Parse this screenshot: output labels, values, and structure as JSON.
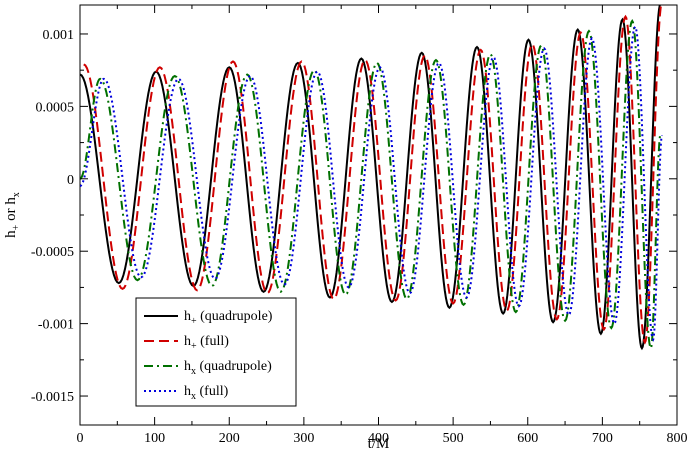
{
  "chart_data": {
    "type": "line",
    "title": "",
    "xlabel": "t/M",
    "ylabel": {
      "base": "h",
      "sub_plus": "+",
      "mid": " or h",
      "sub_x": "x"
    },
    "xlim": [
      0,
      800
    ],
    "ylim": [
      -0.0017,
      0.0012
    ],
    "xticks": [
      0,
      100,
      200,
      300,
      400,
      500,
      600,
      700,
      800
    ],
    "xtick_labels": [
      "0",
      "100",
      "200",
      "300",
      "400",
      "500",
      "600",
      "700",
      "800"
    ],
    "yticks": [
      -0.0015,
      -0.001,
      -0.0005,
      0,
      0.0005,
      0.001
    ],
    "ytick_labels": [
      "-0.0015",
      "-0.001",
      "-0.0005",
      "0",
      "0.0005",
      "0.001"
    ],
    "grid": false,
    "legend_position": "bottom-left",
    "series": [
      {
        "name": "h+ (quadrupole)",
        "legend": {
          "base": "h",
          "sub": "+",
          "rest": " (quadrupole)"
        },
        "color": "#000000",
        "dash": "solid",
        "x": [
          0,
          52,
          102,
          152,
          200,
          246,
          292,
          335,
          377,
          418,
          458,
          495,
          532,
          567,
          601,
          634,
          667,
          698,
          727,
          753,
          778
        ],
        "y": [
          0.00072,
          -0.00072,
          0.00074,
          -0.00074,
          0.00077,
          -0.00078,
          0.0008,
          -0.00082,
          0.00083,
          -0.00085,
          0.00087,
          -0.00089,
          0.00091,
          -0.00093,
          0.00096,
          -0.00099,
          0.00103,
          -0.00107,
          0.0011,
          -0.00117,
          0.00121
        ]
      },
      {
        "name": "h+ (full)",
        "legend": {
          "base": "h",
          "sub": "+",
          "rest": " (full)"
        },
        "color": "#d00000",
        "dash": "long-dash",
        "x": [
          5,
          57,
          107,
          157,
          205,
          251,
          297,
          340,
          382,
          423,
          462,
          500,
          537,
          572,
          606,
          639,
          671,
          702,
          731,
          757,
          780
        ],
        "y": [
          0.00079,
          -0.00076,
          0.00077,
          -0.00077,
          0.00081,
          -0.00079,
          0.00081,
          -0.00083,
          0.00082,
          -0.00084,
          0.00085,
          -0.00086,
          0.00089,
          -0.00091,
          0.00093,
          -0.00097,
          0.00101,
          -0.00104,
          0.00112,
          -0.00113,
          0.00122
        ]
      },
      {
        "name": "hx (quadrupole)",
        "legend": {
          "base": "h",
          "sub": "x",
          "rest": " (quadrupole)"
        },
        "color": "#007000",
        "dash": "dash-dot",
        "x": [
          0,
          27,
          77,
          127,
          177,
          224,
          269,
          314,
          356,
          398,
          438,
          477,
          514,
          550,
          584,
          618,
          650,
          682,
          712,
          740,
          765,
          778
        ],
        "y": [
          0.0,
          0.00069,
          -0.0007,
          0.00071,
          -0.00074,
          0.00072,
          -0.00078,
          0.00075,
          -0.0008,
          0.0008,
          -0.00083,
          0.00082,
          -0.00087,
          0.00086,
          -0.00092,
          0.00092,
          -0.00098,
          0.00102,
          -0.00103,
          0.00109,
          -0.00117,
          0.00031
        ]
      },
      {
        "name": "hx (full)",
        "legend": {
          "base": "h",
          "sub": "x",
          "rest": " (full)"
        },
        "color": "#0000dd",
        "dash": "dotted",
        "x": [
          0,
          32,
          82,
          132,
          181,
          228,
          274,
          318,
          360,
          402,
          442,
          481,
          518,
          554,
          588,
          622,
          655,
          686,
          716,
          744,
          768,
          780
        ],
        "y": [
          -5e-05,
          0.00069,
          -0.00068,
          0.00069,
          -0.00069,
          0.00071,
          -0.00073,
          0.00074,
          -0.00075,
          0.00077,
          -0.00079,
          0.0008,
          -0.00082,
          0.00084,
          -0.00088,
          0.0009,
          -0.00094,
          0.00097,
          -0.001,
          0.00105,
          -0.00111,
          0.0003
        ]
      }
    ]
  }
}
